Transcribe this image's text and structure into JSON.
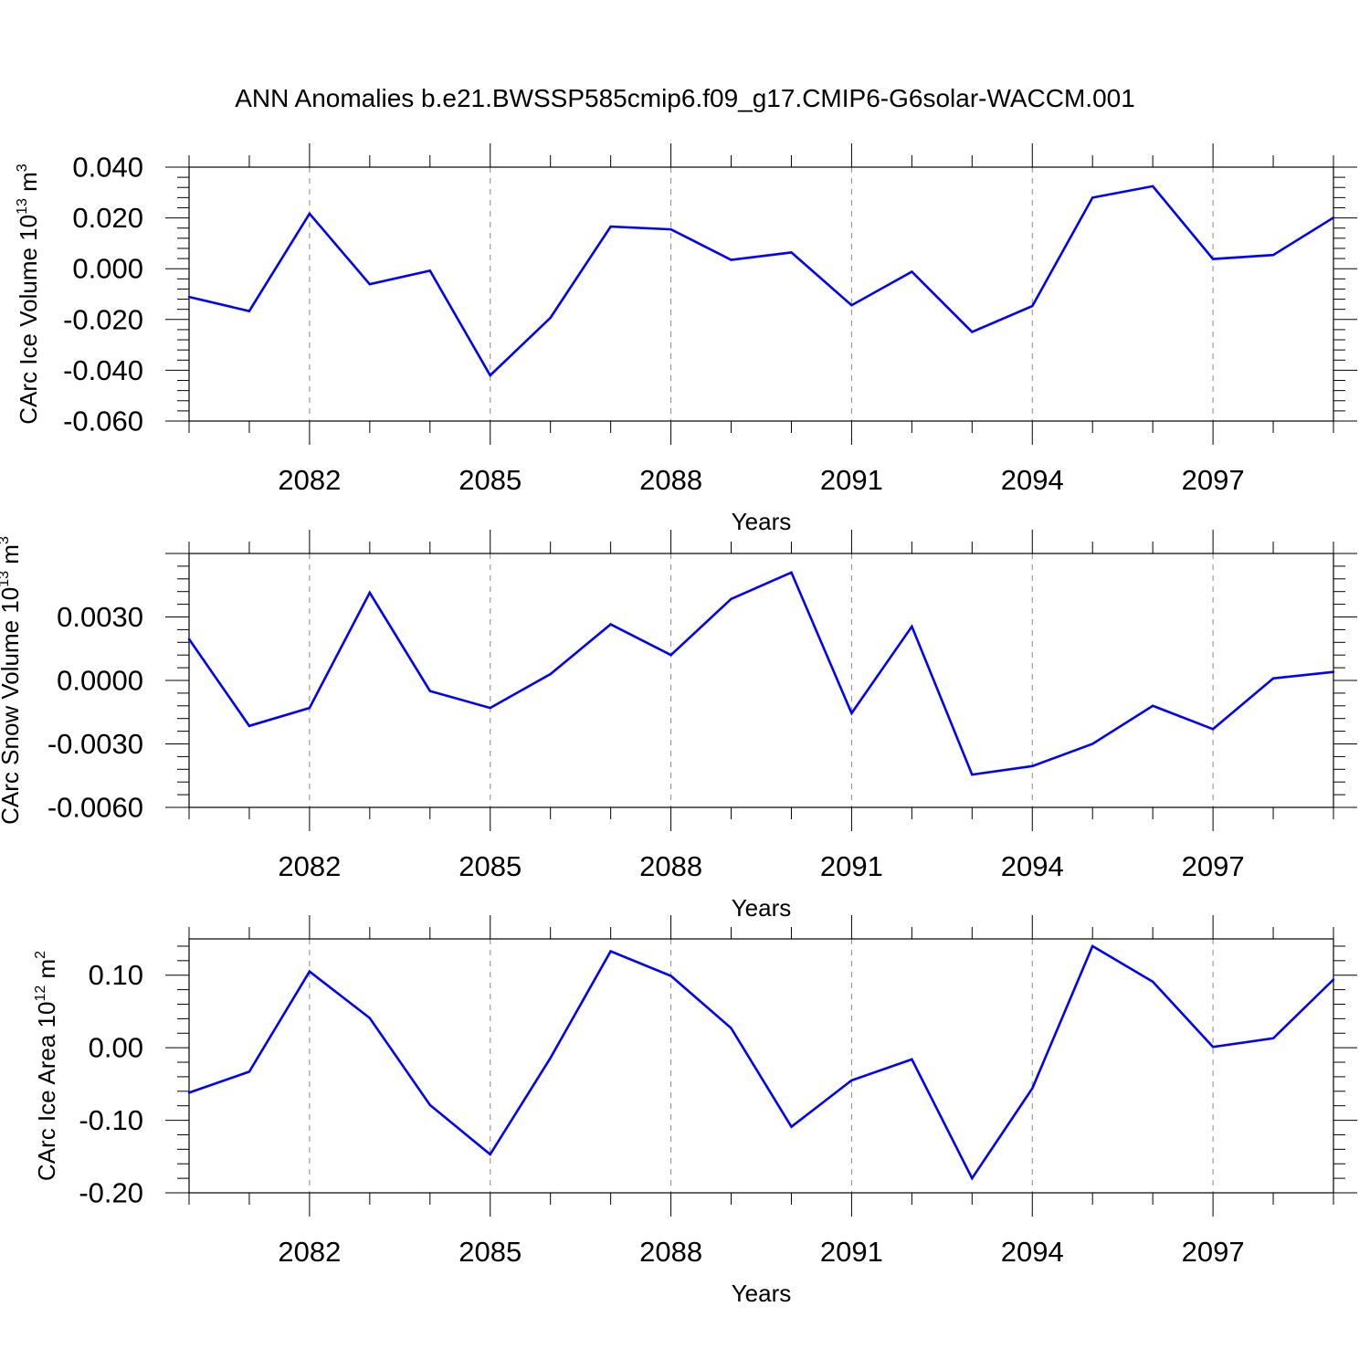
{
  "title": "ANN Anomalies b.e21.BWSSP585cmip6.f09_g17.CMIP6-G6solar-WACCM.001",
  "line_color": "#0000ff",
  "chart_data": [
    {
      "type": "line",
      "ylabel": "CArc Ice Volume",
      "ylabel_unit_base": "10",
      "ylabel_unit_exp": "13",
      "ylabel_unit_tail": " m",
      "ylabel_unit_tail_exp": "3",
      "xlabel": "Years",
      "xlim": [
        2080,
        2099
      ],
      "ylim": [
        -0.06,
        0.04
      ],
      "x_ticks": [
        2082,
        2085,
        2088,
        2091,
        2094,
        2097
      ],
      "x_tick_labels": [
        "2082",
        "2085",
        "2088",
        "2091",
        "2094",
        "2097"
      ],
      "y_ticks": [
        -0.06,
        -0.04,
        -0.02,
        0.0,
        0.02,
        0.04
      ],
      "y_tick_labels": [
        "-0.060",
        "-0.040",
        "-0.020",
        "0.000",
        "0.020",
        "0.040"
      ],
      "grid": "vertical dashed at x ticks",
      "x": [
        2080,
        2081,
        2082,
        2083,
        2084,
        2085,
        2086,
        2087,
        2088,
        2089,
        2090,
        2091,
        2092,
        2093,
        2094,
        2095,
        2096,
        2097,
        2098,
        2099
      ],
      "values": [
        -0.0111,
        -0.0167,
        0.0217,
        -0.0061,
        -0.0008,
        -0.042,
        -0.0193,
        0.0166,
        0.0155,
        0.0035,
        0.0064,
        -0.0144,
        -0.0012,
        -0.0249,
        -0.0147,
        0.028,
        0.0325,
        0.0038,
        0.0054,
        0.0201
      ]
    },
    {
      "type": "line",
      "ylabel": "CArc Snow Volume",
      "ylabel_unit_base": "10",
      "ylabel_unit_exp": "13",
      "ylabel_unit_tail": " m",
      "ylabel_unit_tail_exp": "3",
      "xlabel": "Years",
      "xlim": [
        2080,
        2099
      ],
      "ylim": [
        -0.006,
        0.006
      ],
      "x_ticks": [
        2082,
        2085,
        2088,
        2091,
        2094,
        2097
      ],
      "x_tick_labels": [
        "2082",
        "2085",
        "2088",
        "2091",
        "2094",
        "2097"
      ],
      "y_ticks": [
        -0.006,
        -0.003,
        0.0,
        0.003
      ],
      "y_tick_labels": [
        "-0.0060",
        "-0.0030",
        "0.0000",
        "0.0030"
      ],
      "grid": "vertical dashed at x ticks",
      "x": [
        2080,
        2081,
        2082,
        2083,
        2084,
        2085,
        2086,
        2087,
        2088,
        2089,
        2090,
        2091,
        2092,
        2093,
        2094,
        2095,
        2096,
        2097,
        2098,
        2099
      ],
      "values": [
        0.00195,
        -0.00215,
        -0.0013,
        0.00415,
        -0.0005,
        -0.0013,
        0.0003,
        0.00265,
        0.0012,
        0.00385,
        0.0051,
        -0.00155,
        0.00255,
        -0.00445,
        -0.00405,
        -0.003,
        -0.0012,
        -0.0023,
        0.0001,
        0.0004
      ]
    },
    {
      "type": "line",
      "ylabel": "CArc Ice Area",
      "ylabel_unit_base": "10",
      "ylabel_unit_exp": "12",
      "ylabel_unit_tail": " m",
      "ylabel_unit_tail_exp": "2",
      "xlabel": "Years",
      "xlim": [
        2080,
        2099
      ],
      "ylim": [
        -0.2,
        0.15
      ],
      "x_ticks": [
        2082,
        2085,
        2088,
        2091,
        2094,
        2097
      ],
      "x_tick_labels": [
        "2082",
        "2085",
        "2088",
        "2091",
        "2094",
        "2097"
      ],
      "y_ticks": [
        -0.2,
        -0.1,
        0.0,
        0.1
      ],
      "y_tick_labels": [
        "-0.20",
        "-0.10",
        "0.00",
        "0.10"
      ],
      "grid": "vertical dashed at x ticks",
      "x": [
        2080,
        2081,
        2082,
        2083,
        2084,
        2085,
        2086,
        2087,
        2088,
        2089,
        2090,
        2091,
        2092,
        2093,
        2094,
        2095,
        2096,
        2097,
        2098,
        2099
      ],
      "values": [
        -0.062,
        -0.033,
        0.105,
        0.041,
        -0.079,
        -0.147,
        -0.014,
        0.133,
        0.099,
        0.027,
        -0.109,
        -0.045,
        -0.016,
        -0.18,
        -0.056,
        0.14,
        0.091,
        0.001,
        0.013,
        0.094
      ]
    }
  ]
}
